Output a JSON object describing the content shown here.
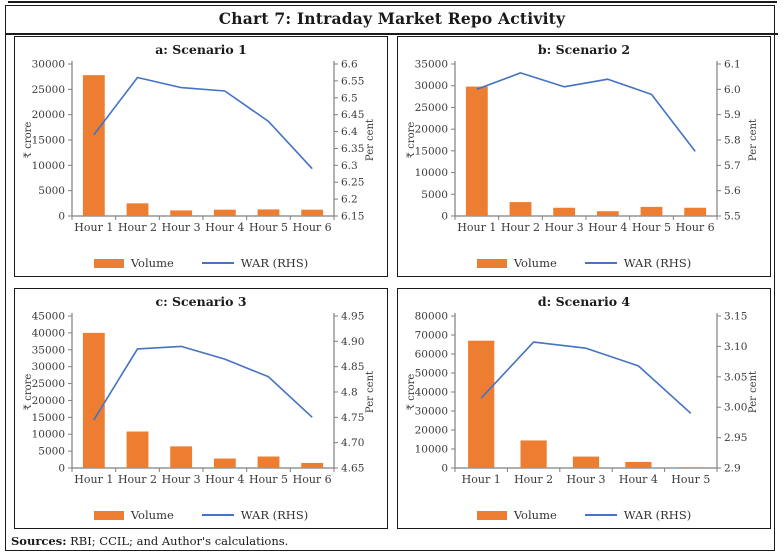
{
  "header": {
    "title": "Chart 7: Intraday Market Repo Activity"
  },
  "footer": {
    "label": "Sources:",
    "text": " RBI; CCIL; and Author's calculations."
  },
  "colors": {
    "bar": "#ED7D31",
    "line": "#4472C4",
    "axis": "#808080",
    "tick_text": "#3a3a3a",
    "border": "#1a1a1a"
  },
  "chart_data": [
    {
      "type": "bar+line",
      "title": "a: Scenario 1",
      "categories": [
        "Hour 1",
        "Hour 2",
        "Hour 3",
        "Hour 4",
        "Hour 5",
        "Hour 6"
      ],
      "series": [
        {
          "name": "Volume",
          "type": "bar",
          "axis": "left",
          "values": [
            27800,
            2500,
            1100,
            1250,
            1300,
            1250
          ]
        },
        {
          "name": "WAR (RHS)",
          "type": "line",
          "axis": "right",
          "values": [
            6.39,
            6.56,
            6.53,
            6.52,
            6.43,
            6.29
          ]
        }
      ],
      "left_axis": {
        "label": "₹ crore",
        "min": 0,
        "max": 30000,
        "tick_step": 5000,
        "tick_labels": [
          "0",
          "5000",
          "10000",
          "15000",
          "20000",
          "25000",
          "30000"
        ]
      },
      "right_axis": {
        "label": "Per cent",
        "min": 6.15,
        "max": 6.6,
        "tick_step": 0.05,
        "tick_labels": [
          "6.15",
          "6.2",
          "6.25",
          "6.3",
          "6.35",
          "6.4",
          "6.45",
          "6.5",
          "6.55",
          "6.6"
        ]
      }
    },
    {
      "type": "bar+line",
      "title": "b: Scenario 2",
      "categories": [
        "Hour 1",
        "Hour 2",
        "Hour 3",
        "Hour 4",
        "Hour 5",
        "Hour 6"
      ],
      "series": [
        {
          "name": "Volume",
          "type": "bar",
          "axis": "left",
          "values": [
            29800,
            3200,
            1900,
            1100,
            2100,
            1900
          ]
        },
        {
          "name": "WAR (RHS)",
          "type": "line",
          "axis": "right",
          "values": [
            6.0,
            6.065,
            6.01,
            6.04,
            5.98,
            5.755
          ]
        }
      ],
      "left_axis": {
        "label": "₹ crore",
        "min": 0,
        "max": 35000,
        "tick_step": 5000,
        "tick_labels": [
          "0",
          "5000",
          "10000",
          "15000",
          "20000",
          "25000",
          "30000",
          "35000"
        ]
      },
      "right_axis": {
        "label": "Per cent",
        "min": 5.5,
        "max": 6.1,
        "tick_step": 0.1,
        "tick_labels": [
          "5.5",
          "5.6",
          "5.7",
          "5.8",
          "5.9",
          "6.0",
          "6.1"
        ]
      }
    },
    {
      "type": "bar+line",
      "title": "c: Scenario 3",
      "categories": [
        "Hour 1",
        "Hour 2",
        "Hour 3",
        "Hour 4",
        "Hour 5",
        "Hour 6"
      ],
      "series": [
        {
          "name": "Volume",
          "type": "bar",
          "axis": "left",
          "values": [
            40000,
            10800,
            6400,
            2800,
            3400,
            1500
          ]
        },
        {
          "name": "WAR (RHS)",
          "type": "line",
          "axis": "right",
          "values": [
            4.745,
            4.885,
            4.89,
            4.865,
            4.83,
            4.75
          ]
        }
      ],
      "left_axis": {
        "label": "₹ crore",
        "min": 0,
        "max": 45000,
        "tick_step": 5000,
        "tick_labels": [
          "0",
          "5000",
          "10000",
          "15000",
          "20000",
          "25000",
          "30000",
          "35000",
          "40000",
          "45000"
        ]
      },
      "right_axis": {
        "label": "Per cent",
        "min": 4.65,
        "max": 4.95,
        "tick_step": 0.05,
        "tick_labels": [
          "4.65",
          "4.70",
          "4.75",
          "4.8",
          "4.85",
          "4.90",
          "4.95"
        ]
      }
    },
    {
      "type": "bar+line",
      "title": "d: Scenario 4",
      "categories": [
        "Hour 1",
        "Hour 2",
        "Hour 3",
        "Hour 4",
        "Hour 5"
      ],
      "series": [
        {
          "name": "Volume",
          "type": "bar",
          "axis": "left",
          "values": [
            67000,
            14500,
            6000,
            3200,
            400
          ]
        },
        {
          "name": "WAR (RHS)",
          "type": "line",
          "axis": "right",
          "values": [
            3.015,
            3.107,
            3.097,
            3.068,
            2.99
          ]
        }
      ],
      "left_axis": {
        "label": "₹ crore",
        "min": 0,
        "max": 80000,
        "tick_step": 10000,
        "tick_labels": [
          "0",
          "10000",
          "20000",
          "30000",
          "40000",
          "50000",
          "60000",
          "70000",
          "80000"
        ]
      },
      "right_axis": {
        "label": "Per cent",
        "min": 2.9,
        "max": 3.15,
        "tick_step": 0.05,
        "tick_labels": [
          "2.9",
          "2.95",
          "3.00",
          "3.05",
          "3.10",
          "3.15"
        ]
      }
    }
  ]
}
